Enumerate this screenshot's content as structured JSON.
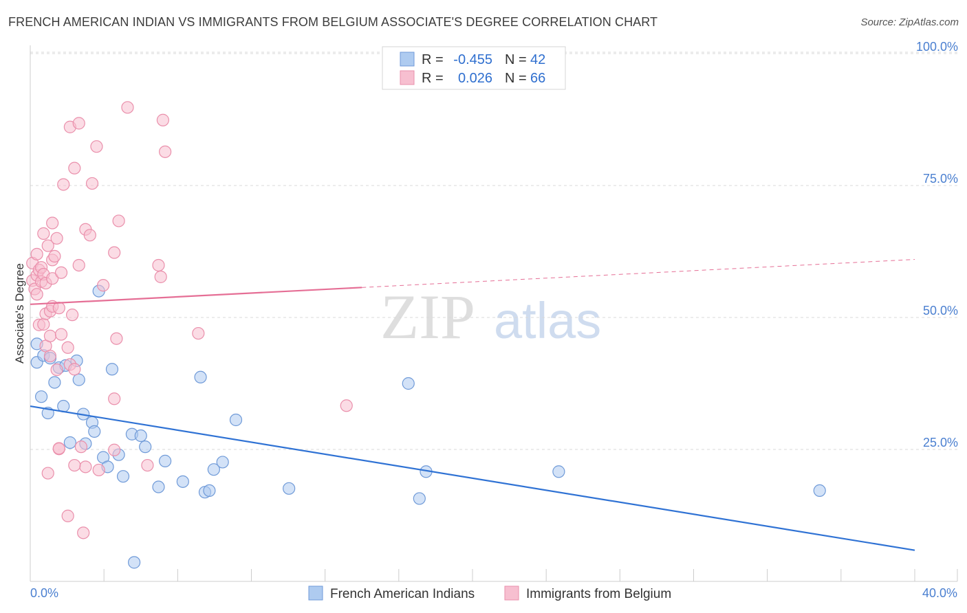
{
  "title": "FRENCH AMERICAN INDIAN VS IMMIGRANTS FROM BELGIUM ASSOCIATE'S DEGREE CORRELATION CHART",
  "source": "Source: ZipAtlas.com",
  "watermark": {
    "zip": "ZIP",
    "atlas": "atlas"
  },
  "colors": {
    "blue_fill": "#aecbf0",
    "blue_stroke": "#6f9ad8",
    "blue_line": "#2f72d4",
    "pink_fill": "#f7bfd0",
    "pink_stroke": "#ea8fab",
    "pink_line": "#e56e95",
    "tick_text": "#4a7fd0",
    "grid": "#d8d8d8"
  },
  "legend": {
    "r_label": "R =",
    "n_label": "N =",
    "blue": {
      "r": "-0.455",
      "n": "42"
    },
    "pink": {
      "r": "0.026",
      "n": "66"
    }
  },
  "chart_data": {
    "type": "scatter",
    "title": "FRENCH AMERICAN INDIAN VS IMMIGRANTS FROM BELGIUM ASSOCIATE'S DEGREE CORRELATION CHART",
    "xlabel": "",
    "ylabel": "Associate's Degree",
    "xlim": [
      0,
      40
    ],
    "ylim": [
      0,
      100
    ],
    "x_tick_labels": {
      "min": "0.0%",
      "max": "40.0%"
    },
    "y_ticks": [
      25,
      50,
      75,
      100
    ],
    "y_tick_labels": [
      "25.0%",
      "50.0%",
      "75.0%",
      "100.0%"
    ],
    "series": [
      {
        "name": "French American Indians",
        "color": "blue",
        "trend": {
          "x0": 0,
          "y0": 33.2,
          "x1": 40,
          "y1": 5.9,
          "dashed_from": null
        },
        "points": [
          [
            0.3,
            45
          ],
          [
            0.3,
            41.5
          ],
          [
            0.5,
            35
          ],
          [
            0.6,
            42.8
          ],
          [
            0.8,
            31.9
          ],
          [
            0.9,
            42.3
          ],
          [
            1.1,
            37.7
          ],
          [
            1.3,
            40.5
          ],
          [
            1.5,
            33.2
          ],
          [
            1.6,
            40.9
          ],
          [
            1.8,
            26.3
          ],
          [
            2.1,
            41.8
          ],
          [
            2.2,
            38.2
          ],
          [
            2.4,
            31.7
          ],
          [
            2.5,
            26.1
          ],
          [
            2.8,
            30.1
          ],
          [
            2.9,
            28.4
          ],
          [
            3.1,
            55
          ],
          [
            3.3,
            23.5
          ],
          [
            3.5,
            21.7
          ],
          [
            3.7,
            40.2
          ],
          [
            4.0,
            24
          ],
          [
            4.2,
            19.9
          ],
          [
            4.6,
            27.9
          ],
          [
            4.7,
            3.6
          ],
          [
            5.0,
            27.6
          ],
          [
            5.2,
            25.5
          ],
          [
            5.8,
            17.9
          ],
          [
            6.1,
            22.8
          ],
          [
            6.9,
            18.9
          ],
          [
            7.7,
            38.7
          ],
          [
            7.9,
            16.9
          ],
          [
            8.1,
            17.2
          ],
          [
            8.3,
            21.2
          ],
          [
            8.7,
            22.6
          ],
          [
            9.3,
            30.6
          ],
          [
            11.7,
            17.6
          ],
          [
            17.1,
            37.5
          ],
          [
            17.6,
            15.7
          ],
          [
            17.9,
            20.8
          ],
          [
            23.9,
            20.8
          ],
          [
            35.7,
            17.2
          ]
        ]
      },
      {
        "name": "Immigrants from Belgium",
        "color": "pink",
        "trend": {
          "x0": 0,
          "y0": 52.5,
          "x1": 40,
          "y1": 61,
          "dashed_from": 15.0
        },
        "points": [
          [
            0.1,
            60.3
          ],
          [
            0.1,
            57
          ],
          [
            0.2,
            55.4
          ],
          [
            0.3,
            58
          ],
          [
            0.3,
            54.4
          ],
          [
            0.3,
            62
          ],
          [
            0.4,
            59
          ],
          [
            0.4,
            48.6
          ],
          [
            0.5,
            59.5
          ],
          [
            0.5,
            56.8
          ],
          [
            0.6,
            58.2
          ],
          [
            0.6,
            48.7
          ],
          [
            0.6,
            65.9
          ],
          [
            0.7,
            56.5
          ],
          [
            0.7,
            50.7
          ],
          [
            0.7,
            44.6
          ],
          [
            0.8,
            63.6
          ],
          [
            0.8,
            20.5
          ],
          [
            0.9,
            51.2
          ],
          [
            0.9,
            46.5
          ],
          [
            0.9,
            42.7
          ],
          [
            1.0,
            60.9
          ],
          [
            1.0,
            57.4
          ],
          [
            1.0,
            52.1
          ],
          [
            1.0,
            67.9
          ],
          [
            1.1,
            61.6
          ],
          [
            1.2,
            40.1
          ],
          [
            1.2,
            65
          ],
          [
            1.3,
            25.1
          ],
          [
            1.3,
            51.8
          ],
          [
            1.4,
            46.8
          ],
          [
            1.4,
            58.5
          ],
          [
            1.5,
            75.2
          ],
          [
            1.7,
            44.3
          ],
          [
            1.7,
            12.4
          ],
          [
            1.8,
            86.1
          ],
          [
            1.8,
            41.1
          ],
          [
            1.9,
            50.5
          ],
          [
            2.0,
            78.3
          ],
          [
            2.0,
            40.2
          ],
          [
            2.2,
            86.8
          ],
          [
            2.2,
            59.9
          ],
          [
            2.3,
            25.5
          ],
          [
            2.4,
            9.2
          ],
          [
            2.5,
            66.7
          ],
          [
            2.5,
            21.7
          ],
          [
            2.7,
            65.6
          ],
          [
            2.8,
            75.4
          ],
          [
            3.0,
            82.4
          ],
          [
            3.1,
            21.1
          ],
          [
            3.3,
            56.1
          ],
          [
            3.8,
            62.3
          ],
          [
            3.8,
            34.6
          ],
          [
            3.9,
            46
          ],
          [
            4.0,
            68.3
          ],
          [
            4.4,
            89.8
          ],
          [
            5.3,
            22
          ],
          [
            5.8,
            59.9
          ],
          [
            5.9,
            57.7
          ],
          [
            6.0,
            87.4
          ],
          [
            6.1,
            81.4
          ],
          [
            7.6,
            47
          ],
          [
            14.3,
            33.3
          ],
          [
            3.8,
            24.9
          ],
          [
            1.3,
            25.2
          ],
          [
            2.0,
            22
          ]
        ]
      }
    ]
  }
}
